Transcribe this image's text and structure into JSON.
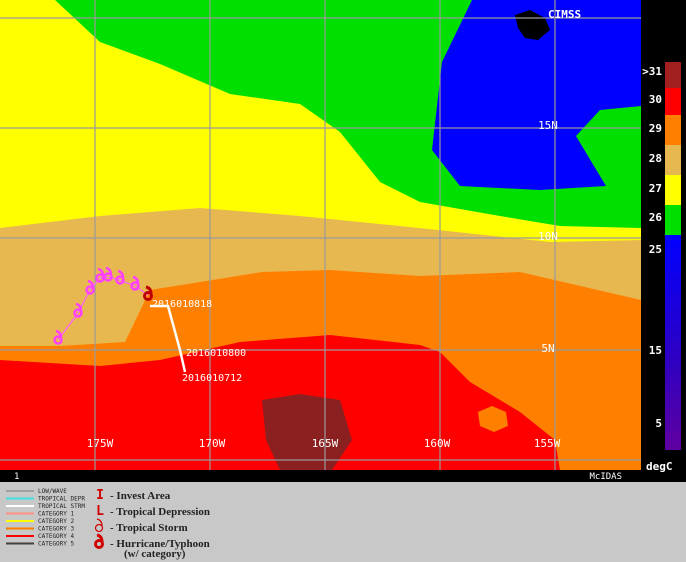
{
  "map": {
    "lon_labels": [
      "175W",
      "170W",
      "165W",
      "160W",
      "155W"
    ],
    "lat_labels": [
      "15N",
      "10N",
      "5N"
    ],
    "track_labels": [
      "2016010818",
      "2016010800",
      "2016010712"
    ]
  },
  "logo": "CIMSS",
  "colorbar": {
    "labels": [
      ">31",
      "30",
      "29",
      "28",
      "27",
      "26",
      "25",
      "15",
      "5"
    ],
    "unit": "degC"
  },
  "footer": {
    "left": "1",
    "right": "McIDAS"
  },
  "legend": {
    "lines": [
      "LOW/WAVE",
      "TROPICAL DEPR",
      "TROPICAL STRM",
      "CATEGORY 1",
      "CATEGORY 2",
      "CATEGORY 3",
      "CATEGORY 4",
      "CATEGORY 5"
    ],
    "symbols": [
      {
        "symbol": "I",
        "label": "- Invest Area"
      },
      {
        "symbol": "L",
        "label": "- Tropical Depression"
      },
      {
        "label": "- Tropical Storm"
      },
      {
        "label": "- Hurricane/Typhoon"
      }
    ],
    "note": "(w/ category)"
  }
}
